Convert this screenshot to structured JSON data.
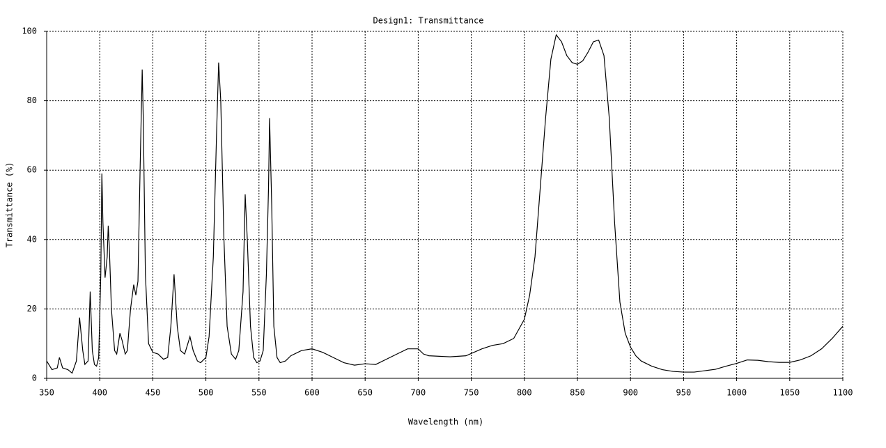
{
  "chart_data": {
    "type": "line",
    "title": "Design1: Transmittance",
    "x_label": "Wavelength (nm)",
    "y_label": "Transmittance (%)",
    "xlim": [
      350,
      1100
    ],
    "ylim": [
      0,
      100
    ],
    "xticks": [
      350,
      400,
      450,
      500,
      550,
      600,
      650,
      700,
      750,
      800,
      850,
      900,
      950,
      1000,
      1050,
      1100
    ],
    "yticks": [
      0,
      20,
      40,
      60,
      80,
      100
    ],
    "grid": true,
    "x": [
      350,
      355,
      360,
      362,
      365,
      370,
      374,
      378,
      381,
      384,
      386,
      389,
      391,
      393,
      395,
      397,
      399,
      401,
      402,
      403,
      405,
      407,
      408,
      409,
      411,
      414,
      416,
      419,
      421,
      424,
      426,
      429,
      432,
      434,
      436,
      438,
      440,
      441,
      443,
      446,
      450,
      455,
      460,
      464,
      467,
      470,
      473,
      476,
      480,
      483,
      485,
      488,
      492,
      495,
      500,
      503,
      507,
      510,
      512,
      514,
      517,
      520,
      524,
      528,
      531,
      535,
      537,
      539,
      542,
      545,
      548,
      551,
      554,
      557,
      559,
      560,
      562,
      564,
      567,
      570,
      575,
      580,
      590,
      600,
      610,
      620,
      630,
      640,
      650,
      660,
      670,
      680,
      690,
      700,
      705,
      710,
      730,
      745,
      760,
      770,
      780,
      790,
      800,
      805,
      810,
      815,
      820,
      825,
      830,
      835,
      840,
      845,
      850,
      855,
      860,
      865,
      870,
      875,
      880,
      885,
      890,
      895,
      900,
      905,
      910,
      920,
      930,
      940,
      950,
      960,
      970,
      980,
      990,
      1000,
      1010,
      1020,
      1030,
      1040,
      1050,
      1060,
      1070,
      1080,
      1090,
      1100
    ],
    "series": [
      {
        "name": "Transmittance",
        "color": "#000000",
        "values": [
          5,
          2.5,
          3,
          6,
          3,
          2.5,
          1.5,
          5,
          17.5,
          8,
          4,
          5,
          25,
          8,
          4,
          3.5,
          6,
          30,
          59,
          45,
          29,
          35,
          44,
          38,
          20,
          8,
          7,
          13,
          11,
          7,
          8,
          20,
          27,
          24,
          28,
          60,
          89,
          75,
          30,
          10,
          7.5,
          7,
          5.5,
          6,
          15,
          30,
          15,
          8,
          7,
          10,
          12,
          8,
          5,
          4.5,
          6,
          12,
          35,
          70,
          91,
          80,
          40,
          15,
          7,
          5.5,
          8,
          25,
          53,
          40,
          15,
          6,
          4.5,
          5,
          8,
          30,
          55,
          75,
          50,
          15,
          6,
          4.5,
          5,
          6.5,
          8,
          8.5,
          7.5,
          6,
          4.5,
          3.8,
          4.2,
          4,
          5.5,
          7,
          8.5,
          8.5,
          7,
          6.5,
          6.2,
          6.5,
          8.5,
          9.5,
          10,
          11.5,
          17,
          24,
          35,
          55,
          75,
          92,
          99,
          97,
          93,
          91,
          90.5,
          91.5,
          94,
          97,
          97.5,
          93,
          75,
          45,
          22,
          13,
          9,
          6.5,
          5,
          3.5,
          2.5,
          2,
          1.8,
          1.8,
          2.2,
          2.6,
          3.5,
          4.3,
          5.3,
          5.2,
          4.8,
          4.6,
          4.6,
          5.3,
          6.5,
          8.5,
          11.5,
          15
        ]
      }
    ]
  }
}
